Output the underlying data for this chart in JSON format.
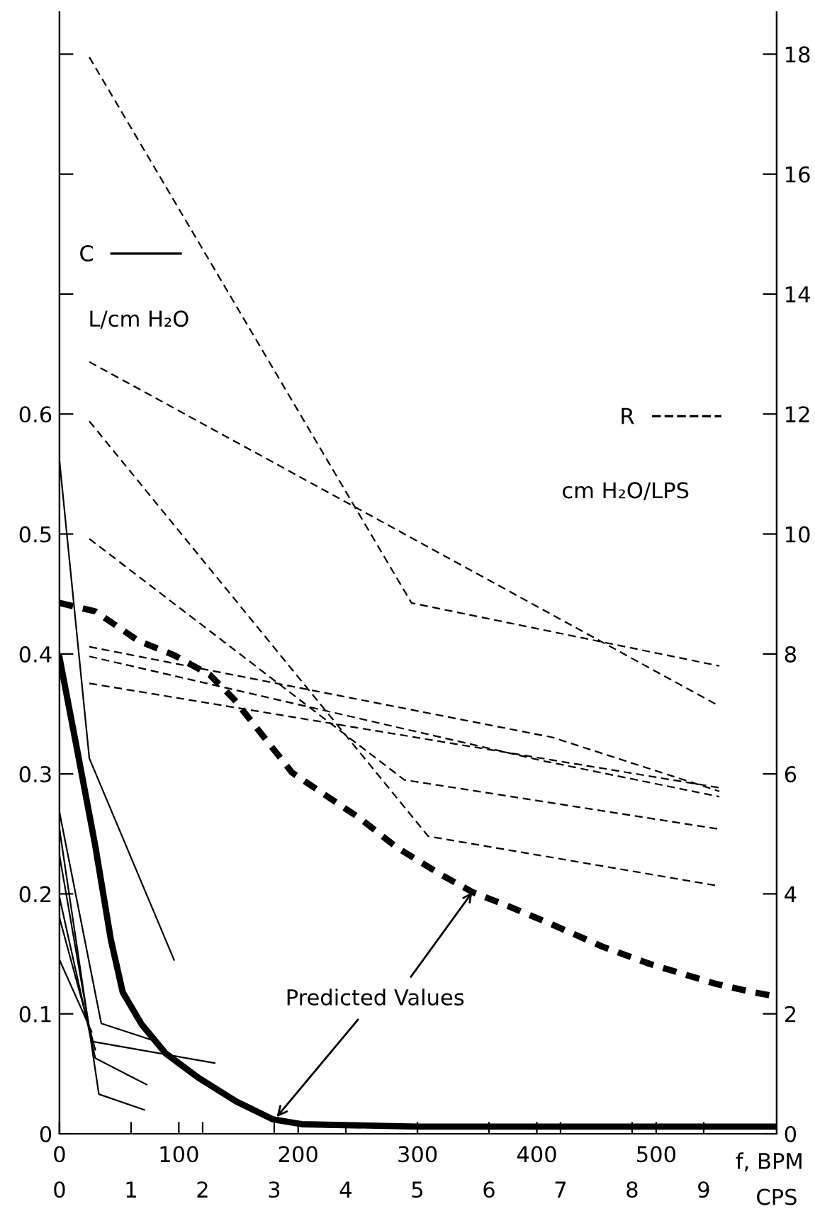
{
  "chart_data": {
    "type": "line",
    "xlabel": "f, BPM",
    "x2label": "CPS",
    "ylabel": "L/cm H₂O",
    "y2label": "cm H₂O/LPS",
    "xlim": [
      0,
      601
    ],
    "xticks": [
      0,
      100,
      200,
      300,
      400,
      500
    ],
    "x2lim": [
      0,
      10.02
    ],
    "x2ticks": [
      0,
      1,
      2,
      3,
      4,
      5,
      6,
      7,
      8,
      9
    ],
    "ylim": [
      0,
      0.935
    ],
    "yticks": [
      0,
      0.1,
      0.2,
      0.3,
      0.4,
      0.5,
      0.6,
      {
        "value": 0.7,
        "label": null
      },
      {
        "value": 0.8,
        "label": null
      },
      {
        "value": 0.9,
        "label": null
      }
    ],
    "y2lim": [
      0,
      18.7
    ],
    "y2ticks": [
      0,
      2,
      4,
      6,
      8,
      10,
      12,
      14,
      16,
      18
    ],
    "legend": "top left",
    "series": [
      {
        "name": "C",
        "color": "#000000",
        "line_style": "solid",
        "x": [
          0,
          25,
          96
        ],
        "values": [
          0.561,
          0.313,
          0.145
        ]
      },
      {
        "color": "#000000",
        "line_style": "solid",
        "x": [
          0,
          35,
          81
        ],
        "values": [
          0.268,
          0.092,
          0.077
        ]
      },
      {
        "color": "#000000",
        "line_style": "solid",
        "x": [
          0,
          33,
          71
        ],
        "values": [
          0.254,
          0.033,
          0.02
        ]
      },
      {
        "color": "#000000",
        "line_style": "solid",
        "x": [
          0,
          27,
          130
        ],
        "values": [
          0.232,
          0.077,
          0.059
        ]
      },
      {
        "color": "#000000",
        "line_style": "solid",
        "x": [
          0,
          30,
          73
        ],
        "values": [
          0.197,
          0.063,
          0.041
        ]
      },
      {
        "color": "#000000",
        "line_style": "solid",
        "x": [
          0,
          30
        ],
        "values": [
          0.18,
          0.07
        ]
      },
      {
        "color": "#000000",
        "line_style": "solid",
        "x": [
          0,
          27
        ],
        "values": [
          0.145,
          0.085
        ]
      },
      {
        "color": "#000000",
        "line_style": "solid",
        "x": [
          0,
          15,
          30,
          43,
          53,
          69,
          89,
          116,
          148,
          179,
          203,
          300,
          450,
          601
        ],
        "values": [
          0.397,
          0.319,
          0.24,
          0.162,
          0.118,
          0.091,
          0.067,
          0.047,
          0.027,
          0.012,
          0.008,
          0.006,
          0.006,
          0.006
        ]
      },
      {
        "name": "R",
        "axis": "y2",
        "color": "#000000",
        "line_style": "dashed",
        "x": [
          25,
          295,
          553
        ],
        "values": [
          17.95,
          8.85,
          7.8
        ]
      },
      {
        "axis": "y2",
        "color": "#000000",
        "line_style": "dashed",
        "x": [
          25,
          553
        ],
        "values": [
          12.87,
          7.13
        ]
      },
      {
        "axis": "y2",
        "color": "#000000",
        "line_style": "dashed",
        "x": [
          25,
          309,
          553
        ],
        "values": [
          11.88,
          4.96,
          4.13
        ]
      },
      {
        "axis": "y2",
        "color": "#000000",
        "line_style": "dashed",
        "x": [
          25,
          289,
          553
        ],
        "values": [
          9.92,
          5.9,
          5.08
        ]
      },
      {
        "axis": "y2",
        "color": "#000000",
        "line_style": "dashed",
        "x": [
          25,
          413,
          553
        ],
        "values": [
          8.12,
          6.61,
          5.71
        ]
      },
      {
        "axis": "y2",
        "color": "#000000",
        "line_style": "dashed",
        "x": [
          25,
          407,
          553
        ],
        "values": [
          7.96,
          6.21,
          5.62
        ]
      },
      {
        "axis": "y2",
        "color": "#000000",
        "line_style": "dashed",
        "x": [
          25,
          553
        ],
        "values": [
          7.51,
          5.77
        ]
      },
      {
        "axis": "y2",
        "color": "#000000",
        "line_style": "dashed",
        "x": [
          0,
          30,
          66,
          96,
          126,
          146,
          179,
          195,
          221,
          251,
          283,
          318,
          346,
          378,
          407,
          455,
          495,
          550,
          581,
          601
        ],
        "values": [
          8.85,
          8.71,
          8.22,
          7.98,
          7.65,
          7.25,
          6.42,
          6.02,
          5.67,
          5.27,
          4.77,
          4.34,
          4.03,
          3.78,
          3.54,
          3.12,
          2.83,
          2.5,
          2.36,
          2.29
        ]
      }
    ],
    "annotations": [
      {
        "text": "Predicted Values",
        "x": 182,
        "y": 0.014
      }
    ]
  }
}
